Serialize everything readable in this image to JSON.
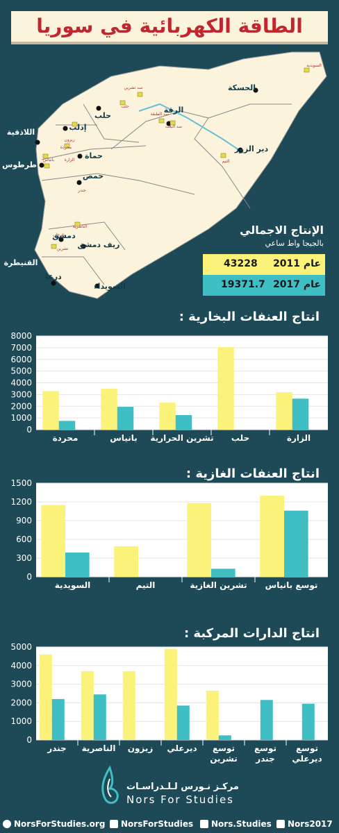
{
  "header": {
    "title": "الطاقة الكهربائية في سوريا"
  },
  "map": {
    "cities": [
      "الحسكة",
      "الرقة",
      "حلب",
      "إدلب",
      "اللاذقية",
      "طرطوس",
      "حماة",
      "حمص",
      "دير الزور",
      "دمشق",
      "ريف دمشق",
      "القنيطرة",
      "درعا",
      "السويداء"
    ],
    "plants": [
      "السويدية",
      "تشرين",
      "سد تشرين",
      "حلب",
      "سد الطبقة",
      "سد البعث",
      "الزارة",
      "زيزون",
      "محردة",
      "بانياس",
      "جندر",
      "التيم",
      "الناصرية",
      "ديرعلي"
    ]
  },
  "summary": {
    "title": "الإنتاج الاجمالي",
    "subtitle": "بالجيجا واط ساعي",
    "rows": [
      {
        "year": "عام 2011",
        "value": "43228",
        "color": "#fbf27a"
      },
      {
        "year": "عام 2017",
        "value": "19371.7",
        "color": "#3fbfc4"
      }
    ]
  },
  "chart_data": [
    {
      "type": "bar",
      "title": "انتاج العنفات البخارية :",
      "categories": [
        "محردة",
        "بانياس",
        "تشرين الحرارية",
        "حلب",
        "الزارة"
      ],
      "series": [
        {
          "values": [
            3300,
            3500,
            2300,
            7050,
            3200
          ],
          "color": "#fbf27a"
        },
        {
          "values": [
            750,
            1950,
            1250,
            0,
            2650
          ],
          "color": "#3fbfc4"
        }
      ],
      "yticks": [
        0,
        1000,
        2000,
        3000,
        4000,
        5000,
        6000,
        7000,
        8000
      ],
      "ylim": [
        0,
        8000
      ]
    },
    {
      "type": "bar",
      "title": "انتاج العنفات الغازية :",
      "categories": [
        "السويدية",
        "التيم",
        "تشرين الغازية",
        "توسع بانياس"
      ],
      "series": [
        {
          "values": [
            1150,
            490,
            1180,
            1300
          ],
          "color": "#fbf27a"
        },
        {
          "values": [
            390,
            0,
            130,
            1060
          ],
          "color": "#3fbfc4"
        }
      ],
      "yticks": [
        0,
        300,
        600,
        900,
        1200,
        1500
      ],
      "ylim": [
        0,
        1500
      ]
    },
    {
      "type": "bar",
      "title": "انتاج الدارات المركبة :",
      "categories": [
        "جندر",
        "الناصرية",
        "زيزون",
        "ديرعلي",
        "توسع تشرين",
        "توسع جندر",
        "توسع ديرعلي"
      ],
      "series": [
        {
          "values": [
            4600,
            3700,
            3700,
            4900,
            2650,
            0,
            0
          ],
          "color": "#fbf27a"
        },
        {
          "values": [
            2200,
            2450,
            0,
            1850,
            250,
            2150,
            1950
          ],
          "color": "#3fbfc4"
        }
      ],
      "yticks": [
        0,
        1000,
        2000,
        3000,
        4000,
        5000
      ],
      "ylim": [
        0,
        5000
      ]
    }
  ],
  "logo": {
    "arabic": "مركـز نـورس لـلـدراسـات",
    "latin": "Nors For Studies"
  },
  "footer": {
    "web": "NorsForStudies.org",
    "twitter": "NorsForStudies",
    "facebook": "Nors.Studies",
    "telegram": "Nors2017"
  }
}
